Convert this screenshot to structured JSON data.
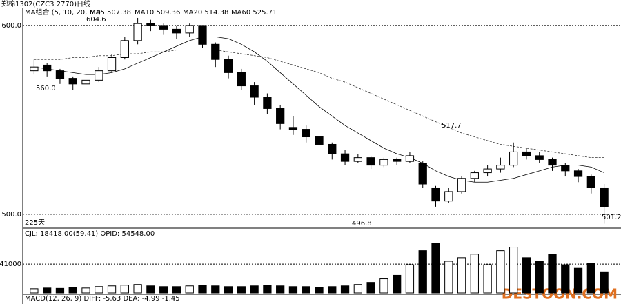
{
  "chart_data": {
    "type": "candlestick",
    "title": "郑棉1302(CZC3 2770)日线",
    "legend_title": "MA组合 (5, 10, 20, 60)",
    "legend_items": [
      "MA5 507.38",
      "MA10 509.36",
      "MA20 514.38",
      "MA60 525.71"
    ],
    "annotations": [
      "604.6",
      "560.0",
      "517.7",
      "496.8",
      "501.2",
      "225天"
    ],
    "volume_title": "CJL: 18418.00(59.41)   OPID: 54548.00",
    "macd_title": "MACD(12, 26, 9)   DIFF: -5.63   DEA: -4.99   -1.45",
    "watermark": "DESTOON.COM",
    "ylim": [
      493,
      608
    ],
    "yticks": [
      {
        "value": 600,
        "label": "600.0"
      },
      {
        "value": 500,
        "label": "500.0"
      }
    ],
    "y2lim": [
      0,
      88000
    ],
    "y2ticks": [
      41000
    ],
    "candles": [
      [
        576,
        582,
        574,
        578
      ],
      [
        579,
        580,
        573,
        576
      ],
      [
        576,
        577,
        569,
        572
      ],
      [
        572,
        573,
        566,
        569
      ],
      [
        569,
        573,
        568,
        571
      ],
      [
        571,
        578,
        570,
        576
      ],
      [
        576,
        585,
        575,
        583
      ],
      [
        583,
        594,
        582,
        592
      ],
      [
        592,
        604,
        590,
        601
      ],
      [
        601,
        603,
        597,
        600
      ],
      [
        600,
        601,
        595,
        598
      ],
      [
        598,
        600,
        593,
        596
      ],
      [
        596,
        601,
        594,
        600
      ],
      [
        600,
        600,
        588,
        590
      ],
      [
        590,
        591,
        578,
        582
      ],
      [
        582,
        584,
        572,
        575
      ],
      [
        575,
        577,
        566,
        568
      ],
      [
        568,
        570,
        558,
        562
      ],
      [
        562,
        564,
        553,
        556
      ],
      [
        556,
        558,
        545,
        548
      ],
      [
        546,
        552,
        542,
        545
      ],
      [
        545,
        547,
        538,
        541
      ],
      [
        541,
        543,
        535,
        537
      ],
      [
        537,
        538,
        529,
        532
      ],
      [
        532,
        534,
        526,
        528
      ],
      [
        528,
        532,
        527,
        530
      ],
      [
        530,
        531,
        524,
        526
      ],
      [
        526,
        530,
        525,
        529
      ],
      [
        529,
        530,
        526,
        528
      ],
      [
        528,
        533,
        527,
        531
      ],
      [
        527,
        528,
        514,
        516
      ],
      [
        514,
        515,
        504,
        507
      ],
      [
        507,
        514,
        506,
        512
      ],
      [
        512,
        520,
        511,
        519
      ],
      [
        519,
        523,
        517,
        522
      ],
      [
        522,
        526,
        520,
        524
      ],
      [
        524,
        530,
        522,
        526
      ],
      [
        526,
        538,
        525,
        533
      ],
      [
        533,
        535,
        529,
        531
      ],
      [
        531,
        533,
        527,
        529
      ],
      [
        529,
        530,
        523,
        526
      ],
      [
        526,
        527,
        520,
        523
      ],
      [
        523,
        524,
        517,
        520
      ],
      [
        520,
        521,
        511,
        514
      ],
      [
        514,
        516,
        495,
        504
      ]
    ],
    "volumes": [
      6000,
      7000,
      6500,
      8000,
      7000,
      9000,
      10000,
      11000,
      12000,
      10000,
      9000,
      9000,
      10000,
      11000,
      10000,
      9000,
      9000,
      10000,
      11000,
      10000,
      9000,
      9000,
      8000,
      9000,
      10000,
      12000,
      15000,
      20000,
      25000,
      40000,
      60000,
      70000,
      45000,
      50000,
      55000,
      40000,
      60000,
      65000,
      50000,
      45000,
      55000,
      40000,
      35000,
      42000,
      30000
    ],
    "lines": [
      {
        "color": "#000000",
        "values": [
          578,
          577,
          576,
          575,
          574,
          574,
          575,
          577,
          580,
          583,
          586,
          589,
          592,
          594,
          594,
          593,
          590,
          586,
          581,
          575,
          569,
          563,
          557,
          552,
          547,
          543,
          539,
          535,
          532,
          530,
          527,
          523,
          520,
          518,
          517,
          517,
          518,
          519,
          521,
          523,
          525,
          526,
          526,
          525,
          522
        ]
      },
      {
        "color": "#333333",
        "values": [
          582,
          582,
          582,
          583,
          583,
          584,
          584,
          585,
          585,
          586,
          586,
          587,
          587,
          587,
          587,
          586,
          585,
          584,
          583,
          581,
          579,
          577,
          575,
          572,
          570,
          567,
          564,
          561,
          558,
          555,
          552,
          549,
          546,
          543,
          541,
          539,
          537,
          536,
          535,
          534,
          533,
          532,
          531,
          530,
          530
        ]
      }
    ]
  }
}
